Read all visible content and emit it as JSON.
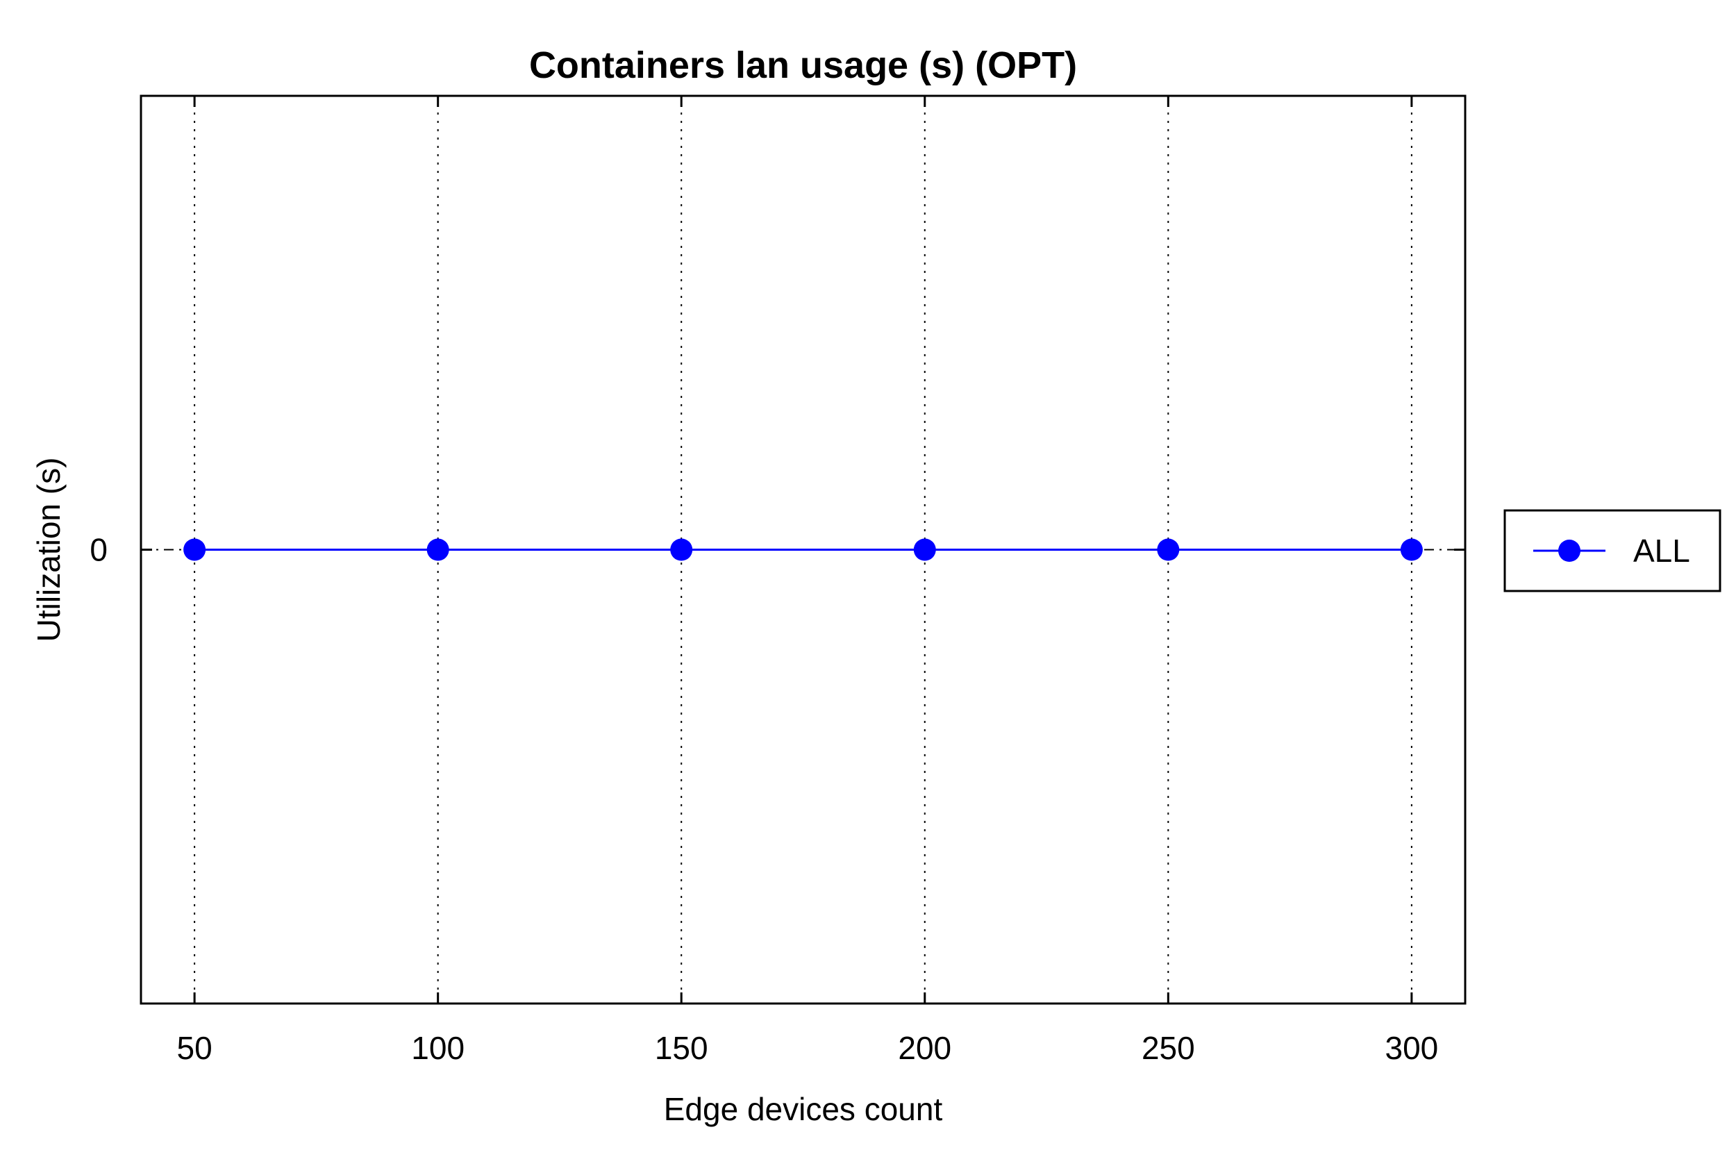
{
  "chart_data": {
    "type": "line",
    "title": "Containers lan usage (s) (OPT)",
    "xlabel": "Edge devices count",
    "ylabel": "Utilization (s)",
    "x": [
      50,
      100,
      150,
      200,
      250,
      300
    ],
    "x_ticks": [
      "50",
      "100",
      "150",
      "200",
      "250",
      "300"
    ],
    "y_ticks": [
      "0"
    ],
    "xlim": [
      39,
      311
    ],
    "ylim": [
      -1,
      1
    ],
    "grid": "vertical dotted",
    "legend_position": "right-outside",
    "series": [
      {
        "name": "ALL",
        "color": "#0000ff",
        "marker": "circle",
        "values": [
          0,
          0,
          0,
          0,
          0,
          0
        ]
      }
    ],
    "reference_line": {
      "y": 0,
      "style": "dash-dot",
      "color": "#000000"
    }
  }
}
